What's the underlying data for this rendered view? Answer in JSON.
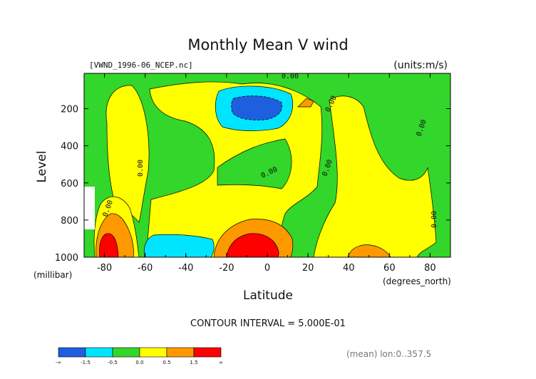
{
  "chart_data": {
    "type": "heatmap",
    "title": "Monthly Mean V wind",
    "file_label": "[VWND_1996-06_NCEP.nc]",
    "units_label": "(units:m/s)",
    "xlabel": "Latitude",
    "x_units": "(degrees_north)",
    "ylabel": "Level",
    "y_units": "(millibar)",
    "x_range": [
      -90,
      90
    ],
    "y_range": [
      1000,
      10
    ],
    "x_ticks": [
      "-80",
      "-60",
      "-40",
      "-20",
      "0",
      "20",
      "40",
      "60",
      "80"
    ],
    "y_ticks": [
      "200",
      "400",
      "600",
      "800",
      "1000"
    ],
    "contour_interval_text": "CONTOUR INTERVAL = 5.000E-01",
    "footer_text": "(mean) lon:0..357.5",
    "contour_labels": [
      "0.00",
      "0.00",
      "0.00",
      "0.00",
      "0.00",
      "0.00",
      "0.00",
      "0.00"
    ],
    "colorbar": {
      "tick_labels": [
        "-∞",
        "-1.5",
        "-0.5",
        "0.0",
        "0.5",
        "1.5",
        "∞"
      ],
      "levels": [
        {
          "range": "< -1.5",
          "color": "#1e5fe0"
        },
        {
          "range": "-1.5 to -0.5",
          "color": "#00e5ff"
        },
        {
          "range": "-0.5 to 0.0",
          "color": "#33d62a"
        },
        {
          "range": "0.0 to 0.5",
          "color": "#ffff00"
        },
        {
          "range": "0.5 to 1.5",
          "color": "#ff9900"
        },
        {
          "range": "> 1.5",
          "color": "#ff0000"
        }
      ]
    },
    "regions": [
      {
        "level": "-0.5 to 0.0",
        "x": [
          -90,
          90
        ],
        "y": [
          1000,
          10
        ]
      },
      {
        "level": "0.0 to 0.5",
        "x": [
          -75,
          -55
        ],
        "y": [
          760,
          160
        ]
      },
      {
        "level": "0.0 to 0.5",
        "x": [
          -45,
          45
        ],
        "y": [
          1000,
          420
        ]
      },
      {
        "level": "0.0 to 0.5",
        "x": [
          40,
          80
        ],
        "y": [
          1000,
          300
        ]
      },
      {
        "level": "-1.5 to -0.5",
        "x": [
          -20,
          10
        ],
        "y": [
          230,
          110
        ]
      },
      {
        "level": "< -1.5",
        "x": [
          -13,
          2
        ],
        "y": [
          190,
          125
        ]
      },
      {
        "level": "-1.5 to -0.5",
        "x": [
          -60,
          -25
        ],
        "y": [
          1000,
          880
        ]
      },
      {
        "level": "0.5 to 1.5",
        "x": [
          -30,
          15
        ],
        "y": [
          1000,
          800
        ]
      },
      {
        "level": "> 1.5",
        "x": [
          -20,
          0
        ],
        "y": [
          1000,
          880
        ]
      },
      {
        "level": "0.5 to 1.5",
        "x": [
          -86,
          -68
        ],
        "y": [
          1000,
          700
        ]
      },
      {
        "level": "> 1.5",
        "x": [
          -88,
          -78
        ],
        "y": [
          1000,
          880
        ]
      },
      {
        "level": "0.5 to 1.5",
        "x": [
          40,
          60
        ],
        "y": [
          1000,
          950
        ]
      }
    ]
  }
}
